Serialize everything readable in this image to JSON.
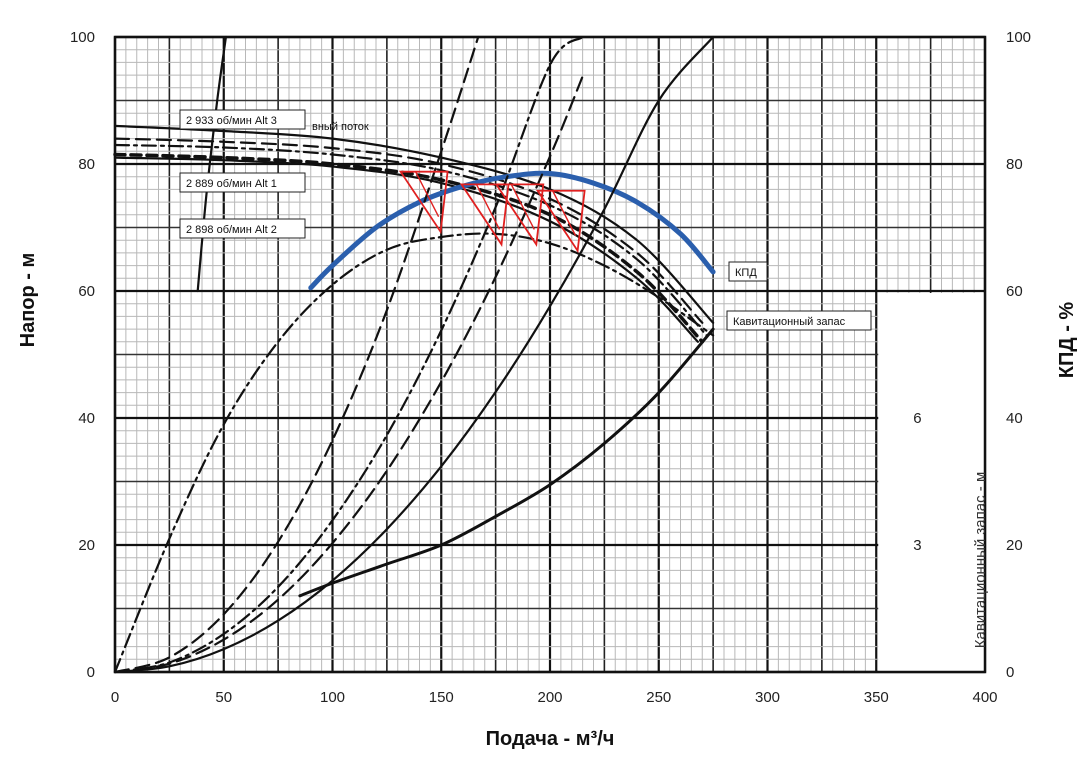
{
  "chart_data": {
    "type": "line",
    "x_axis": {
      "label": "Подача - м³/ч",
      "min": 0,
      "max": 400,
      "ticks": [
        0,
        50,
        100,
        150,
        200,
        250,
        300,
        350,
        400
      ]
    },
    "y_axis_left": {
      "label": "Напор - м",
      "min": 0,
      "max": 100,
      "ticks": [
        0,
        20,
        40,
        60,
        80,
        100
      ]
    },
    "y_axis_right": {
      "label": "КПД - %",
      "min": 0,
      "max": 100,
      "ticks": [
        0,
        20,
        40,
        60,
        80,
        100
      ]
    },
    "npsh_axis": {
      "label": "Кавитационный запас - м",
      "ticks": [
        "3",
        "6"
      ]
    },
    "grid": true,
    "annotations": [
      "2 933 об/мин  Alt 3",
      "2 889 об/мин  Alt 1",
      "2 898 об/мин  Alt 2",
      "КПД",
      "Кавитационный запас",
      "вный поток"
    ],
    "series": [
      {
        "role": "head",
        "label": "2 933 об/мин  Alt 3",
        "style": "solid",
        "x": [
          0,
          50,
          100,
          150,
          200,
          240,
          275
        ],
        "y": [
          86,
          85.2,
          84,
          81,
          76,
          68,
          55
        ]
      },
      {
        "role": "head",
        "label": "2 933 об/мин  Alt 3",
        "style": "long-dash",
        "x": [
          0,
          50,
          100,
          150,
          200,
          240,
          270
        ],
        "y": [
          84,
          83.5,
          82.5,
          80,
          74.5,
          66,
          55
        ]
      },
      {
        "role": "head",
        "label": "2 889 об/мин  Alt 1",
        "style": "dash-dot",
        "x": [
          0,
          50,
          100,
          150,
          200,
          240,
          272
        ],
        "y": [
          83,
          82.6,
          81.5,
          79,
          73.5,
          65,
          53
        ]
      },
      {
        "role": "head",
        "label": "2 889 об/мин  Alt 1",
        "style": "heavy-dash",
        "x": [
          0,
          50,
          100,
          150,
          200,
          240,
          270
        ],
        "y": [
          81.5,
          81,
          80,
          77.5,
          72,
          63,
          52
        ]
      },
      {
        "role": "head",
        "label": "2 898 об/мин  Alt 2",
        "style": "solid",
        "x": [
          0,
          50,
          100,
          150,
          200,
          240,
          268
        ],
        "y": [
          81,
          80.6,
          79.6,
          77,
          71,
          62,
          52
        ]
      },
      {
        "role": "efficiency",
        "label": "КПД",
        "color": "#2b5fad",
        "x": [
          90,
          100,
          120,
          140,
          160,
          180,
          200,
          220,
          240,
          260,
          275
        ],
        "y": [
          60.5,
          64,
          70,
          74,
          76.5,
          78,
          78.5,
          77,
          74,
          69,
          63
        ]
      },
      {
        "role": "efficiency-curve",
        "style": "dash-dot",
        "x": [
          0,
          25,
          50,
          75,
          100,
          125,
          150,
          175,
          200,
          225,
          250,
          275
        ],
        "y": [
          0,
          21,
          39,
          52,
          61,
          66.5,
          68.5,
          69,
          67.5,
          64,
          59,
          53
        ]
      },
      {
        "role": "npsh",
        "label": "Кавитационный запас",
        "style": "solid",
        "x": [
          85,
          100,
          125,
          150,
          175,
          200,
          225,
          250,
          275
        ],
        "y": [
          12,
          14,
          17,
          20,
          24.5,
          29.5,
          36,
          44,
          54
        ]
      },
      {
        "role": "system",
        "style": "solid",
        "x": [
          0,
          25,
          50,
          75,
          100,
          125,
          150,
          175,
          200,
          225,
          250,
          275
        ],
        "y": [
          0,
          0.9,
          3.6,
          8.1,
          14.4,
          22.5,
          32.4,
          44.1,
          57.6,
          72.9,
          90,
          100
        ]
      },
      {
        "role": "system",
        "style": "long-dash",
        "x": [
          0,
          25,
          50,
          75,
          100,
          125,
          150,
          175,
          200,
          215
        ],
        "y": [
          0,
          1.3,
          5.1,
          11.4,
          20.3,
          31.7,
          45.7,
          62.2,
          81.2,
          93.8
        ]
      },
      {
        "role": "system",
        "style": "dash-dot",
        "x": [
          0,
          25,
          50,
          75,
          100,
          125,
          150,
          175,
          200,
          215
        ],
        "y": [
          0,
          1.5,
          6,
          13.4,
          23.9,
          37.3,
          53.8,
          73.2,
          95.6,
          100
        ]
      },
      {
        "role": "system",
        "style": "long-dash",
        "x": [
          0,
          25,
          50,
          75,
          100,
          125,
          150,
          167
        ],
        "y": [
          0,
          2.3,
          9.1,
          20.5,
          36.5,
          57,
          82,
          100
        ]
      },
      {
        "role": "pump-start",
        "style": "solid",
        "x": [
          38,
          42,
          47,
          51
        ],
        "y": [
          60,
          75,
          90,
          100
        ]
      }
    ],
    "markers": [
      {
        "x": 152,
        "y": 78,
        "color": "#e02020"
      },
      {
        "x": 180,
        "y": 76,
        "color": "#e02020"
      },
      {
        "x": 196,
        "y": 76,
        "color": "#e02020"
      },
      {
        "x": 215,
        "y": 75,
        "color": "#e02020"
      }
    ]
  }
}
